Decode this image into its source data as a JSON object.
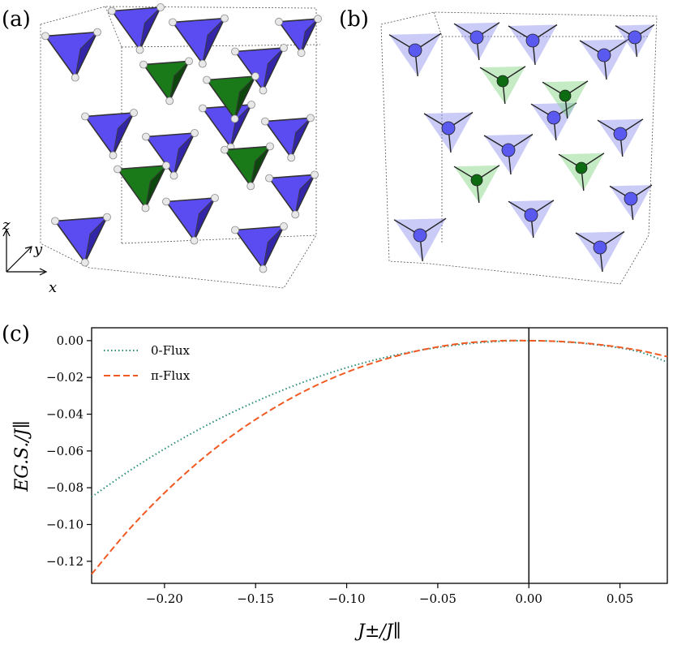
{
  "panels": {
    "a": {
      "label": "(a)",
      "axes": {
        "z": "z",
        "y": "y",
        "x": "x"
      }
    },
    "b": {
      "label": "(b)"
    },
    "c": {
      "label": "(c)"
    }
  },
  "colors": {
    "blue_tetra": "#5b4cf2",
    "blue_tetra_dark": "#2c1f9a",
    "green_tetra": "#1a7a1a",
    "green_tetra_dark": "#0b3d0b",
    "zero_flux": "#2a8c7a",
    "pi_flux": "#f05a22"
  },
  "chart_data": {
    "type": "line",
    "xlabel": "J±/J∥",
    "ylabel": "EG.S./J∥",
    "xlim": [
      -0.24,
      0.076
    ],
    "ylim": [
      -0.132,
      0.007
    ],
    "xticks": [
      -0.2,
      -0.15,
      -0.1,
      -0.05,
      0.0,
      0.05
    ],
    "xtick_labels": [
      "−0.20",
      "−0.15",
      "−0.10",
      "−0.05",
      "0.00",
      "0.05"
    ],
    "yticks": [
      0.0,
      -0.02,
      -0.04,
      -0.06,
      -0.08,
      -0.1,
      -0.12
    ],
    "ytick_labels": [
      "0.00",
      "−0.02",
      "−0.04",
      "−0.06",
      "−0.08",
      "−0.10",
      "−0.12"
    ],
    "vline_x": 0.0,
    "legend_position": "top-left",
    "series": [
      {
        "name": "0-Flux",
        "style": "dotted",
        "x": [
          -0.24,
          -0.22,
          -0.2,
          -0.18,
          -0.16,
          -0.14,
          -0.12,
          -0.1,
          -0.08,
          -0.06,
          -0.04,
          -0.02,
          0.0,
          0.02,
          0.04,
          0.06,
          0.076
        ],
        "y": [
          -0.085,
          -0.0713,
          -0.0589,
          -0.0477,
          -0.0377,
          -0.0289,
          -0.0212,
          -0.0147,
          -0.0094,
          -0.0053,
          -0.0024,
          -0.0006,
          0.0,
          -0.0007,
          -0.0026,
          -0.0059,
          -0.0117
        ]
      },
      {
        "name": "π-Flux",
        "style": "dashed",
        "x": [
          -0.24,
          -0.22,
          -0.2,
          -0.18,
          -0.16,
          -0.14,
          -0.12,
          -0.1,
          -0.08,
          -0.06,
          -0.04,
          -0.02,
          0.0,
          0.02,
          0.04,
          0.06,
          0.076
        ],
        "y": [
          -0.127,
          -0.1033,
          -0.0828,
          -0.0649,
          -0.0496,
          -0.0367,
          -0.0259,
          -0.0172,
          -0.0104,
          -0.0053,
          -0.0019,
          -0.0002,
          0.0,
          -0.0006,
          -0.0023,
          -0.0052,
          -0.0087
        ]
      }
    ]
  }
}
